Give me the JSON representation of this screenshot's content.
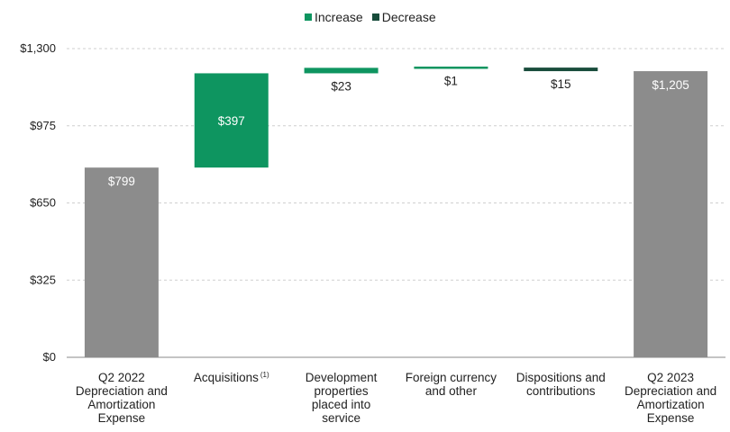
{
  "chart_data": {
    "type": "bar",
    "subtype": "waterfall",
    "legend": {
      "position": "top-center",
      "items": [
        {
          "label": "Increase",
          "color": "#0e9560"
        },
        {
          "label": "Decrease",
          "color": "#184c3b"
        }
      ]
    },
    "y_ticks": [
      "$0",
      "$325",
      "$650",
      "$975",
      "$1,300"
    ],
    "ylim": [
      0,
      1300
    ],
    "grid": true,
    "bars": [
      {
        "category": [
          "Q2 2022",
          "Depreciation and",
          "Amortization",
          "Expense"
        ],
        "kind": "total",
        "start": 0,
        "end": 799,
        "label": "$799",
        "color": "#8c8c8c"
      },
      {
        "category": [
          "Acquisitions"
        ],
        "footnote": "(1)",
        "kind": "increase",
        "start": 799,
        "end": 1196,
        "label": "$397",
        "color": "#0e9560"
      },
      {
        "category": [
          "Development",
          "properties",
          "placed into",
          "service"
        ],
        "kind": "increase",
        "start": 1196,
        "end": 1219,
        "label": "$23",
        "color": "#0e9560"
      },
      {
        "category": [
          "Foreign currency",
          "and other"
        ],
        "kind": "increase",
        "start": 1219,
        "end": 1220,
        "label": "$1",
        "color": "#0e9560"
      },
      {
        "category": [
          "Dispositions and",
          "contributions"
        ],
        "kind": "decrease",
        "start": 1220,
        "end": 1205,
        "label": "$15",
        "color": "#184c3b"
      },
      {
        "category": [
          "Q2 2023",
          "Depreciation and",
          "Amortization",
          "Expense"
        ],
        "kind": "total",
        "start": 0,
        "end": 1205,
        "label": "$1,205",
        "color": "#8c8c8c"
      }
    ]
  }
}
